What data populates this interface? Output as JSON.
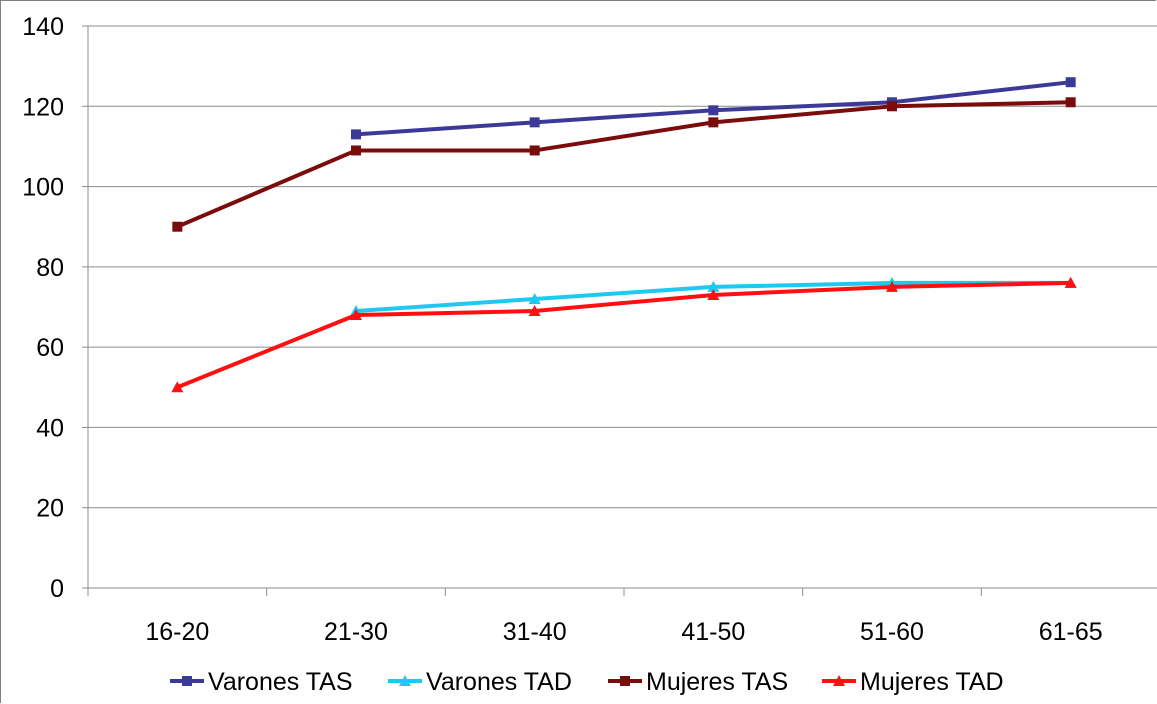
{
  "chart_data": {
    "type": "line",
    "categories": [
      "16-20",
      "21-30",
      "31-40",
      "41-50",
      "51-60",
      "61-65"
    ],
    "ylim": [
      0,
      140
    ],
    "yticks": [
      0,
      20,
      40,
      60,
      80,
      100,
      120,
      140
    ],
    "grid": true,
    "legend_position": "bottom",
    "series": [
      {
        "name": "Varones TAS",
        "color": "#3b3a98",
        "marker": "square",
        "values": [
          null,
          113,
          116,
          119,
          121,
          126
        ]
      },
      {
        "name": "Varones TAD",
        "color": "#1fc8f0",
        "marker": "triangle",
        "values": [
          null,
          69,
          72,
          75,
          76,
          76
        ]
      },
      {
        "name": "Mujeres TAS",
        "color": "#7b0c0c",
        "marker": "square",
        "values": [
          90,
          109,
          109,
          116,
          120,
          121
        ]
      },
      {
        "name": "Mujeres TAD",
        "color": "#ff1010",
        "marker": "triangle",
        "values": [
          50,
          68,
          69,
          73,
          75,
          76
        ]
      }
    ]
  }
}
